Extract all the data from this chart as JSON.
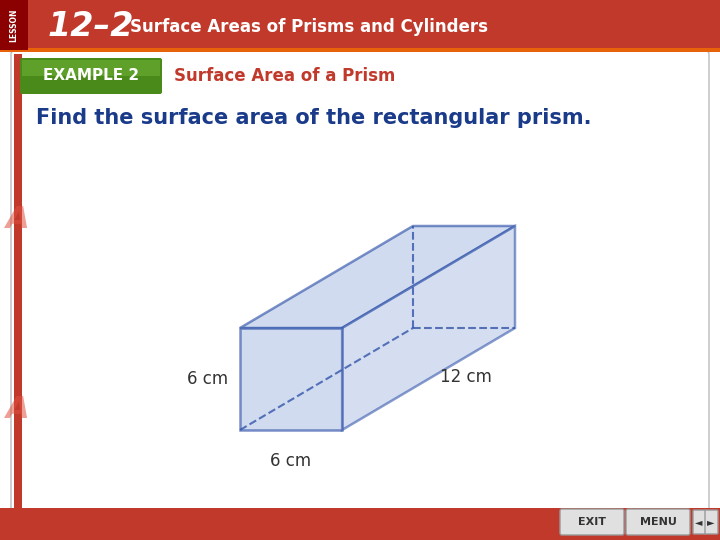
{
  "bg_color": "#ffffff",
  "header_color": "#c0392b",
  "header_text_large": "12–2",
  "header_text_small": "Surface Areas of Prisms and Cylinders",
  "example_label": "EXAMPLE 2",
  "example_title": "Surface Area of a Prism",
  "example_title_color": "#c0392b",
  "main_text": "Find the surface area of the rectangular prism.",
  "main_text_color": "#1a3a8a",
  "dim_labels": [
    "6 cm",
    "6 cm",
    "12 cm"
  ],
  "prism_face_color": "#b8c8e8",
  "prism_edge_color": "#3355aa",
  "prism_alpha": 0.65,
  "footer_color": "#c0392b",
  "lesson_label": "LESSON",
  "example_green_light": "#7dc242",
  "example_green_dark": "#4a8a1a"
}
